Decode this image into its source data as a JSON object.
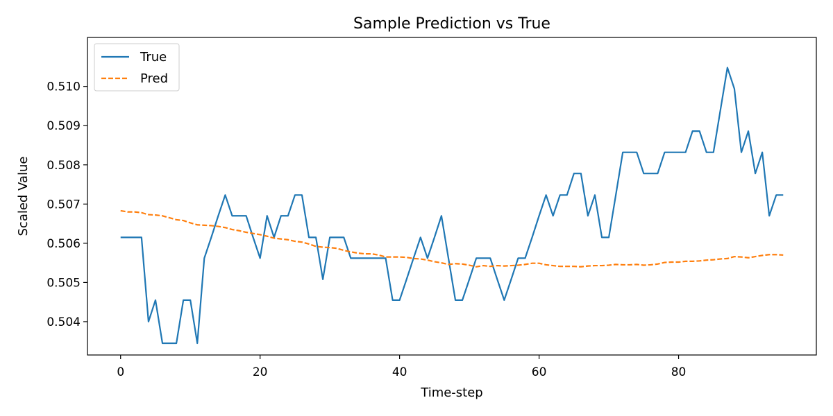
{
  "chart_data": {
    "type": "line",
    "title": "Sample Prediction vs True",
    "xlabel": "Time-step",
    "ylabel": "Scaled Value",
    "xlim": [
      -4.75,
      99.75
    ],
    "ylim": [
      0.50315,
      0.51125
    ],
    "xticks": [
      0,
      20,
      40,
      60,
      80
    ],
    "xtick_labels": [
      "0",
      "20",
      "40",
      "60",
      "80"
    ],
    "yticks": [
      0.504,
      0.505,
      0.506,
      0.507,
      0.508,
      0.509,
      0.51
    ],
    "ytick_labels": [
      "0.504",
      "0.505",
      "0.506",
      "0.507",
      "0.508",
      "0.509",
      "0.510"
    ],
    "legend_position": "top-left",
    "grid": false,
    "series": [
      {
        "name": "True",
        "color": "#1f77b4",
        "style": "solid",
        "values": [
          0.50615,
          0.50615,
          0.50615,
          0.50615,
          0.504,
          0.50455,
          0.50345,
          0.50345,
          0.50345,
          0.50455,
          0.50455,
          0.50345,
          0.50562,
          0.50615,
          0.5067,
          0.50723,
          0.5067,
          0.5067,
          0.5067,
          0.50615,
          0.50562,
          0.5067,
          0.50615,
          0.5067,
          0.5067,
          0.50723,
          0.50723,
          0.50615,
          0.50615,
          0.50508,
          0.50615,
          0.50615,
          0.50615,
          0.50562,
          0.50562,
          0.50562,
          0.50562,
          0.50562,
          0.50562,
          0.50455,
          0.50455,
          0.50508,
          0.50562,
          0.50615,
          0.50562,
          0.50615,
          0.5067,
          0.50562,
          0.50455,
          0.50455,
          0.50508,
          0.50562,
          0.50562,
          0.50562,
          0.50508,
          0.50455,
          0.50508,
          0.50562,
          0.50562,
          0.50615,
          0.5067,
          0.50723,
          0.5067,
          0.50723,
          0.50723,
          0.50778,
          0.50778,
          0.5067,
          0.50723,
          0.50615,
          0.50615,
          0.50723,
          0.50832,
          0.50832,
          0.50832,
          0.50778,
          0.50778,
          0.50778,
          0.50832,
          0.50832,
          0.50832,
          0.50832,
          0.50886,
          0.50886,
          0.50832,
          0.50832,
          0.5094,
          0.51048,
          0.50994,
          0.50832,
          0.50886,
          0.50778,
          0.50832,
          0.5067,
          0.50723,
          0.50723
        ]
      },
      {
        "name": "Pred",
        "color": "#ff7f0e",
        "style": "dashed",
        "values": [
          0.50683,
          0.5068,
          0.5068,
          0.50678,
          0.50673,
          0.50672,
          0.5067,
          0.50665,
          0.5066,
          0.50658,
          0.50652,
          0.50647,
          0.50646,
          0.50645,
          0.50643,
          0.5064,
          0.50635,
          0.50632,
          0.50628,
          0.50625,
          0.50622,
          0.50618,
          0.50613,
          0.50611,
          0.50609,
          0.50605,
          0.50603,
          0.50598,
          0.50592,
          0.5059,
          0.50589,
          0.50587,
          0.50582,
          0.50578,
          0.50575,
          0.50573,
          0.50573,
          0.5057,
          0.50565,
          0.50565,
          0.50565,
          0.50564,
          0.50561,
          0.5056,
          0.50557,
          0.50553,
          0.5055,
          0.50546,
          0.50548,
          0.50547,
          0.50544,
          0.5054,
          0.50543,
          0.50541,
          0.50543,
          0.50542,
          0.50543,
          0.50544,
          0.50546,
          0.50549,
          0.50549,
          0.50545,
          0.50543,
          0.50541,
          0.50541,
          0.50541,
          0.5054,
          0.50542,
          0.50543,
          0.50543,
          0.50544,
          0.50546,
          0.50545,
          0.50545,
          0.50546,
          0.50544,
          0.50545,
          0.50547,
          0.50551,
          0.50552,
          0.50552,
          0.50554,
          0.50554,
          0.50555,
          0.50557,
          0.50558,
          0.5056,
          0.50561,
          0.50566,
          0.50565,
          0.50563,
          0.50566,
          0.50569,
          0.50571,
          0.50571,
          0.5057
        ]
      }
    ]
  }
}
